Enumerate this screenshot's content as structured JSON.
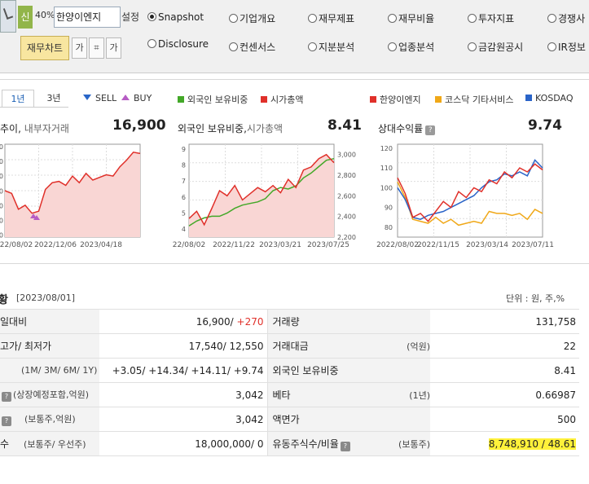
{
  "toolbar": {
    "prefix_button": "신",
    "percent": "40%",
    "company_name": "한양이엔지",
    "settings_label": "설정",
    "radio_row1": [
      {
        "label": "Snapshot",
        "checked": true
      },
      {
        "label": "기업개요",
        "checked": false
      },
      {
        "label": "재무제표",
        "checked": false
      },
      {
        "label": "재무비율",
        "checked": false
      },
      {
        "label": "투자지표",
        "checked": false
      },
      {
        "label": "경쟁사",
        "checked": false
      }
    ],
    "radio_row2": [
      {
        "label": "Disclosure",
        "checked": false
      },
      {
        "label": "컨센서스",
        "checked": false
      },
      {
        "label": "지분분석",
        "checked": false
      },
      {
        "label": "업종분석",
        "checked": false
      },
      {
        "label": "금감원공시",
        "checked": false
      },
      {
        "label": "IR정보",
        "checked": false
      }
    ],
    "fin_chart_button": "재무차트",
    "tool_buttons": [
      "가",
      "⌗",
      "가"
    ]
  },
  "chart_panel": {
    "tabs": [
      "1년",
      "3년"
    ],
    "legend_left": {
      "sell": "SELL",
      "buy": "BUY"
    },
    "legend_mid": [
      {
        "label": "외국인 보유비중",
        "color": "#43a828"
      },
      {
        "label": "시가총액",
        "color": "#e0302a"
      }
    ],
    "legend_right": [
      {
        "label": "한양이엔지",
        "color": "#e0302a"
      },
      {
        "label": "코스닥 기타서비스",
        "color": "#f0a818"
      },
      {
        "label": "KOSDAQ",
        "color": "#2a64c8"
      }
    ]
  },
  "chart_data": [
    {
      "type": "line",
      "title": "추이,",
      "subtitle": "내부자거래",
      "value": "16,900",
      "x_ticks": [
        "22/08/02",
        "2022/12/06",
        "2023/04/18"
      ],
      "y_ticks": [
        "00",
        "00",
        "00",
        "00",
        "00",
        "00",
        "00"
      ],
      "series": [
        {
          "values": [
            14000,
            13800,
            12600,
            12900,
            12300,
            12450,
            14100,
            14600,
            14700,
            14400,
            15100,
            14600,
            15300,
            14800,
            15000,
            15200,
            15100,
            15800,
            16300,
            16900,
            16800
          ]
        }
      ]
    },
    {
      "type": "line",
      "title": "외국인 보유비중,",
      "subtitle": "시가총액",
      "value": "8.41",
      "x_ticks": [
        "22/08/02",
        "2022/11/22",
        "2023/03/21",
        "2023/07/25"
      ],
      "y_ticks_left": [
        "4",
        "5",
        "6",
        "7",
        "8",
        "9"
      ],
      "y_ticks_right": [
        "2,200",
        "2,400",
        "2,600",
        "2,800",
        "3,000"
      ],
      "series": [
        {
          "name": "외국인 보유비중",
          "values": [
            4.2,
            4.5,
            4.7,
            4.8,
            4.8,
            5.0,
            5.3,
            5.5,
            5.6,
            5.7,
            5.9,
            6.4,
            6.6,
            6.5,
            6.7,
            7.2,
            7.5,
            7.9,
            8.3,
            8.4
          ]
        },
        {
          "name": "시가총액",
          "values": [
            2380,
            2450,
            2320,
            2480,
            2650,
            2600,
            2700,
            2560,
            2620,
            2680,
            2640,
            2700,
            2630,
            2760,
            2680,
            2850,
            2880,
            2960,
            3000,
            2920
          ]
        }
      ]
    },
    {
      "type": "line",
      "title": "상대수익률",
      "value": "9.74",
      "x_ticks": [
        "2022/08/02",
        "2022/11/15",
        "2023/03/14",
        "2023/07/11"
      ],
      "y_ticks": [
        "80",
        "90",
        "100",
        "110",
        "120"
      ],
      "series": [
        {
          "name": "한양이엔지",
          "values": [
            105,
            97,
            85,
            87,
            83,
            88,
            93,
            90,
            98,
            95,
            100,
            98,
            104,
            102,
            108,
            105,
            110,
            108,
            112,
            109
          ]
        },
        {
          "name": "코스닥 기타서비스",
          "values": [
            103,
            95,
            84,
            83,
            82,
            85,
            82,
            84,
            81,
            82,
            83,
            82,
            88,
            87,
            87,
            86,
            87,
            84,
            89,
            87
          ]
        },
        {
          "name": "KOSDAQ",
          "values": [
            100,
            94,
            85,
            84,
            86,
            87,
            88,
            90,
            92,
            94,
            96,
            100,
            103,
            104,
            107,
            106,
            108,
            106,
            114,
            110
          ]
        }
      ]
    }
  ],
  "info_section": {
    "title": "황",
    "date": "[2023/08/01]",
    "unit": "단위 : 원, 주,%",
    "rows": [
      {
        "l1": "일대비",
        "l1_sub": "",
        "v1": "16,900/",
        "v1_red": " +270",
        "l2": "거래량",
        "l2_sub": "",
        "v2": "131,758"
      },
      {
        "l1": "고가/ 최저가",
        "l1_sub": "",
        "v1": "17,540/ 12,550",
        "v1_red": "",
        "l2": "거래대금",
        "l2_sub": "(억원)",
        "v2": "22"
      },
      {
        "l1": "",
        "l1_sub": "(1M/ 3M/ 6M/ 1Y)",
        "v1": "",
        "v1_red": "+3.05/ +14.34/ +14.11/ +9.74",
        "l2": "외국인 보유비중",
        "l2_sub": "",
        "v2": "8.41"
      },
      {
        "l1": "",
        "l1_sub": "(상장예정포함,억원)",
        "v1": "3,042",
        "v1_red": "",
        "l2": "베타",
        "l2_sub": "(1년)",
        "v2": "0.66987"
      },
      {
        "l1": "",
        "l1_sub": "(보통주,억원)",
        "v1": "3,042",
        "v1_red": "",
        "l2": "액면가",
        "l2_sub": "",
        "v2": "500"
      },
      {
        "l1": "수",
        "l1_sub": "(보통주/ 우선주)",
        "v1": "18,000,000/ 0",
        "v1_red": "",
        "l2": "유동주식수/비율",
        "l2_sub": "(보통주)",
        "v2": "8,748,910 / 48.61"
      }
    ]
  }
}
